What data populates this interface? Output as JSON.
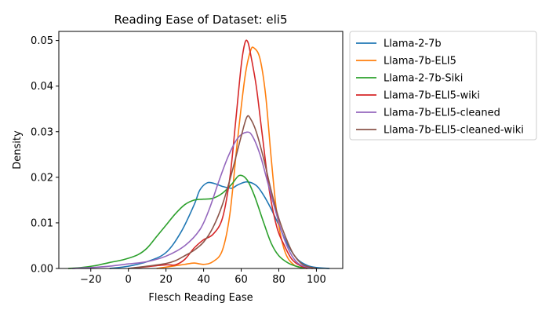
{
  "chart_data": {
    "type": "line",
    "title": "Reading Ease of Dataset: eli5",
    "xlabel": "Flesch Reading Ease",
    "ylabel": "Density",
    "xlim": [
      -37,
      114
    ],
    "ylim": [
      0,
      0.052
    ],
    "xticks": [
      -20,
      0,
      20,
      40,
      60,
      80,
      100
    ],
    "xtick_labels": [
      "−20",
      "0",
      "20",
      "40",
      "60",
      "80",
      "100"
    ],
    "yticks": [
      0.0,
      0.01,
      0.02,
      0.03,
      0.04,
      0.05
    ],
    "ytick_labels": [
      "0.00",
      "0.01",
      "0.02",
      "0.03",
      "0.04",
      "0.05"
    ],
    "grid": false,
    "legend_position": "outside-right-top",
    "series": [
      {
        "name": "Llama-2-7b",
        "color": "#1f77b4",
        "points": [
          [
            -10,
            0
          ],
          [
            0,
            0.0005
          ],
          [
            10,
            0.0015
          ],
          [
            20,
            0.0035
          ],
          [
            28,
            0.008
          ],
          [
            35,
            0.014
          ],
          [
            38,
            0.0172
          ],
          [
            42,
            0.0188
          ],
          [
            46,
            0.0186
          ],
          [
            50,
            0.018
          ],
          [
            55,
            0.0176
          ],
          [
            58,
            0.0183
          ],
          [
            63,
            0.019
          ],
          [
            68,
            0.0182
          ],
          [
            72,
            0.016
          ],
          [
            76,
            0.013
          ],
          [
            80,
            0.0095
          ],
          [
            85,
            0.005
          ],
          [
            90,
            0.002
          ],
          [
            95,
            0.0007
          ],
          [
            100,
            0.0002
          ],
          [
            107,
            0
          ]
        ]
      },
      {
        "name": "Llama-7b-ELI5",
        "color": "#ff7f0e",
        "points": [
          [
            15,
            0
          ],
          [
            20,
            0.0003
          ],
          [
            25,
            0.0006
          ],
          [
            30,
            0.0009
          ],
          [
            35,
            0.0012
          ],
          [
            40,
            0.0009
          ],
          [
            45,
            0.0015
          ],
          [
            50,
            0.004
          ],
          [
            54,
            0.012
          ],
          [
            58,
            0.028
          ],
          [
            62,
            0.042
          ],
          [
            65,
            0.0478
          ],
          [
            67,
            0.0483
          ],
          [
            70,
            0.046
          ],
          [
            73,
            0.038
          ],
          [
            76,
            0.024
          ],
          [
            79,
            0.012
          ],
          [
            83,
            0.004
          ],
          [
            88,
            0.0008
          ],
          [
            95,
            0
          ]
        ]
      },
      {
        "name": "Llama-2-7b-Siki",
        "color": "#2ca02c",
        "points": [
          [
            -32,
            0
          ],
          [
            -25,
            0.0002
          ],
          [
            -18,
            0.0006
          ],
          [
            -10,
            0.0013
          ],
          [
            -2,
            0.002
          ],
          [
            5,
            0.003
          ],
          [
            10,
            0.0045
          ],
          [
            15,
            0.007
          ],
          [
            20,
            0.0095
          ],
          [
            25,
            0.012
          ],
          [
            30,
            0.014
          ],
          [
            35,
            0.015
          ],
          [
            40,
            0.0152
          ],
          [
            45,
            0.0154
          ],
          [
            50,
            0.0165
          ],
          [
            55,
            0.0185
          ],
          [
            59,
            0.0204
          ],
          [
            63,
            0.0195
          ],
          [
            67,
            0.016
          ],
          [
            72,
            0.01
          ],
          [
            76,
            0.0055
          ],
          [
            80,
            0.0028
          ],
          [
            85,
            0.0012
          ],
          [
            90,
            0.0004
          ],
          [
            95,
            0
          ]
        ]
      },
      {
        "name": "Llama-7b-ELI5-wiki",
        "color": "#d62728",
        "points": [
          [
            0,
            0
          ],
          [
            10,
            0.0004
          ],
          [
            20,
            0.0008
          ],
          [
            25,
            0.0008
          ],
          [
            30,
            0.002
          ],
          [
            35,
            0.0045
          ],
          [
            40,
            0.0063
          ],
          [
            45,
            0.0075
          ],
          [
            50,
            0.011
          ],
          [
            54,
            0.02
          ],
          [
            57,
            0.032
          ],
          [
            60,
            0.0445
          ],
          [
            62,
            0.0495
          ],
          [
            63.5,
            0.0497
          ],
          [
            65,
            0.047
          ],
          [
            68,
            0.04
          ],
          [
            71,
            0.03
          ],
          [
            75,
            0.017
          ],
          [
            79,
            0.009
          ],
          [
            83,
            0.005
          ],
          [
            87,
            0.002
          ],
          [
            92,
            0.0005
          ],
          [
            98,
            0
          ]
        ]
      },
      {
        "name": "Llama-7b-ELI5-cleaned",
        "color": "#9467bd",
        "points": [
          [
            -30,
            0
          ],
          [
            -20,
            0.0002
          ],
          [
            -10,
            0.0005
          ],
          [
            0,
            0.001
          ],
          [
            10,
            0.0015
          ],
          [
            20,
            0.0027
          ],
          [
            30,
            0.005
          ],
          [
            38,
            0.0085
          ],
          [
            43,
            0.013
          ],
          [
            48,
            0.019
          ],
          [
            53,
            0.0245
          ],
          [
            58,
            0.0285
          ],
          [
            63,
            0.0299
          ],
          [
            66,
            0.029
          ],
          [
            70,
            0.025
          ],
          [
            74,
            0.019
          ],
          [
            78,
            0.013
          ],
          [
            82,
            0.0075
          ],
          [
            86,
            0.0035
          ],
          [
            90,
            0.0012
          ],
          [
            95,
            0.0003
          ],
          [
            100,
            0
          ]
        ]
      },
      {
        "name": "Llama-7b-ELI5-cleaned-wiki",
        "color": "#8c564b",
        "points": [
          [
            0,
            0
          ],
          [
            10,
            0.0005
          ],
          [
            20,
            0.0011
          ],
          [
            25,
            0.0017
          ],
          [
            30,
            0.0028
          ],
          [
            35,
            0.004
          ],
          [
            40,
            0.0058
          ],
          [
            45,
            0.009
          ],
          [
            50,
            0.014
          ],
          [
            55,
            0.021
          ],
          [
            60,
            0.029
          ],
          [
            63,
            0.0332
          ],
          [
            65,
            0.0328
          ],
          [
            68,
            0.03
          ],
          [
            72,
            0.024
          ],
          [
            76,
            0.017
          ],
          [
            80,
            0.011
          ],
          [
            84,
            0.0065
          ],
          [
            88,
            0.003
          ],
          [
            93,
            0.0008
          ],
          [
            100,
            0
          ]
        ]
      }
    ]
  }
}
